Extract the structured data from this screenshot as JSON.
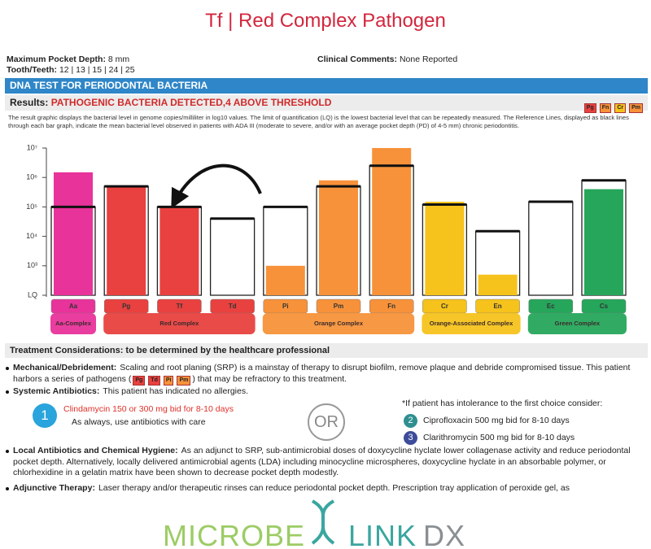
{
  "header": {
    "title": "Tf | Red Complex Pathogen"
  },
  "report": {
    "max_depth": {
      "label": "Maximum Pocket Depth:",
      "value": "8 mm"
    },
    "teeth": {
      "label": "Tooth/Teeth:",
      "value": "12 | 13 | 15 | 24 | 25"
    },
    "comments": {
      "label": "Clinical Comments:",
      "value": "None Reported"
    },
    "section_title": "DNA TEST FOR PERIODONTAL BACTERIA",
    "results": {
      "label": "Results:",
      "value": "PATHOGENIC BACTERIA DETECTED,4 ABOVE THRESHOLD",
      "badges": [
        "Pg",
        "Fn",
        "Cr",
        "Pm"
      ]
    },
    "description": "The result graphic displays the bacterial level in genome copies/milliliter in log10 values. The limit of quantification (LQ) is the lowest bacterial level that can be repeatedly measured. The Reference Lines, displayed as black lines through each bar graph, indicate the mean bacterial level observed in patients with ADA III (moderate to severe, and/or with an average pocket depth (PD) of 4-5 mm) chronic periodontitis."
  },
  "chart_data": {
    "type": "bar",
    "log_scale": true,
    "ylim": [
      100,
      10000000
    ],
    "yticks": [
      {
        "value": 100,
        "label": "LQ"
      },
      {
        "value": 1000,
        "label": "10³"
      },
      {
        "value": 10000,
        "label": "10⁴"
      },
      {
        "value": 100000,
        "label": "10⁵"
      },
      {
        "value": 1000000,
        "label": "10⁶"
      },
      {
        "value": 10000000,
        "label": "10⁷"
      }
    ],
    "groups": [
      {
        "name": "Aa-Complex",
        "color": "#e8339a",
        "categories": [
          "Aa"
        ]
      },
      {
        "name": "Red Complex",
        "color": "#e8413f",
        "categories": [
          "Pg",
          "Tf",
          "Td"
        ]
      },
      {
        "name": "Orange Complex",
        "color": "#f7923a",
        "categories": [
          "Pi",
          "Pm",
          "Fn"
        ]
      },
      {
        "name": "Orange-Associated Complex",
        "color": "#f6c21c",
        "categories": [
          "Cr",
          "En"
        ]
      },
      {
        "name": "Green Complex",
        "color": "#26a65b",
        "categories": [
          "Ec",
          "Cs"
        ]
      }
    ],
    "values": [
      1500000,
      500000,
      100000,
      null,
      1000,
      800000,
      10000000,
      150000,
      500,
      null,
      400000
    ],
    "reference_values": [
      100000,
      500000,
      100000,
      40000,
      100000,
      500000,
      2500000,
      120000,
      15000,
      150000,
      800000
    ]
  },
  "treatment": {
    "title": "Treatment Considerations: to be determined by the healthcare professional",
    "mechanical": {
      "head": "Mechanical/Debridement:",
      "text_before": "Scaling and root planing (SRP) is a mainstay of therapy to disrupt biofilm, remove plaque and debride compromised tissue. This patient harbors a series of pathogens (",
      "badges": [
        "Pg",
        "Td",
        "Pi",
        "Pm"
      ],
      "text_after": ") that may be refractory to this treatment."
    },
    "systemic": {
      "head": "Systemic Antibiotics:",
      "text": "This patient has indicated no allergies."
    },
    "option1": {
      "number": "1",
      "drug": "Clindamycin 150 or 300 mg bid for 8-10 days",
      "note": "As always, use antibiotics with care"
    },
    "or": "OR",
    "alternatives": {
      "intro": "*If patient has intolerance to the first choice consider:",
      "options": [
        {
          "number": "2",
          "drug": "Ciprofloxacin 500 mg bid for 8-10 days"
        },
        {
          "number": "3",
          "drug": "Clarithromycin 500 mg bid for 8-10 days"
        }
      ]
    },
    "local": {
      "head": "Local Antibiotics and Chemical Hygiene:",
      "text": "As an adjunct to SRP, sub-antimicrobial doses of doxycycline hyclate lower collagenase activity and reduce periodontal pocket depth. Alternatively, locally delivered antimicrobial agents (LDA) including minocycline microspheres, doxycycline hyclate in an absorbable polymer, or chlorhexidine in a gelatin matrix have been shown to decrease pocket depth modestly."
    },
    "adjunctive": {
      "head": "Adjunctive Therapy:",
      "text": "Laser therapy and/or therapeutic rinses can reduce periodontal pocket depth. Prescription tray application of peroxide gel, as"
    }
  },
  "footer": {
    "logo": [
      "MICROBE",
      "LINK",
      "DX"
    ]
  }
}
